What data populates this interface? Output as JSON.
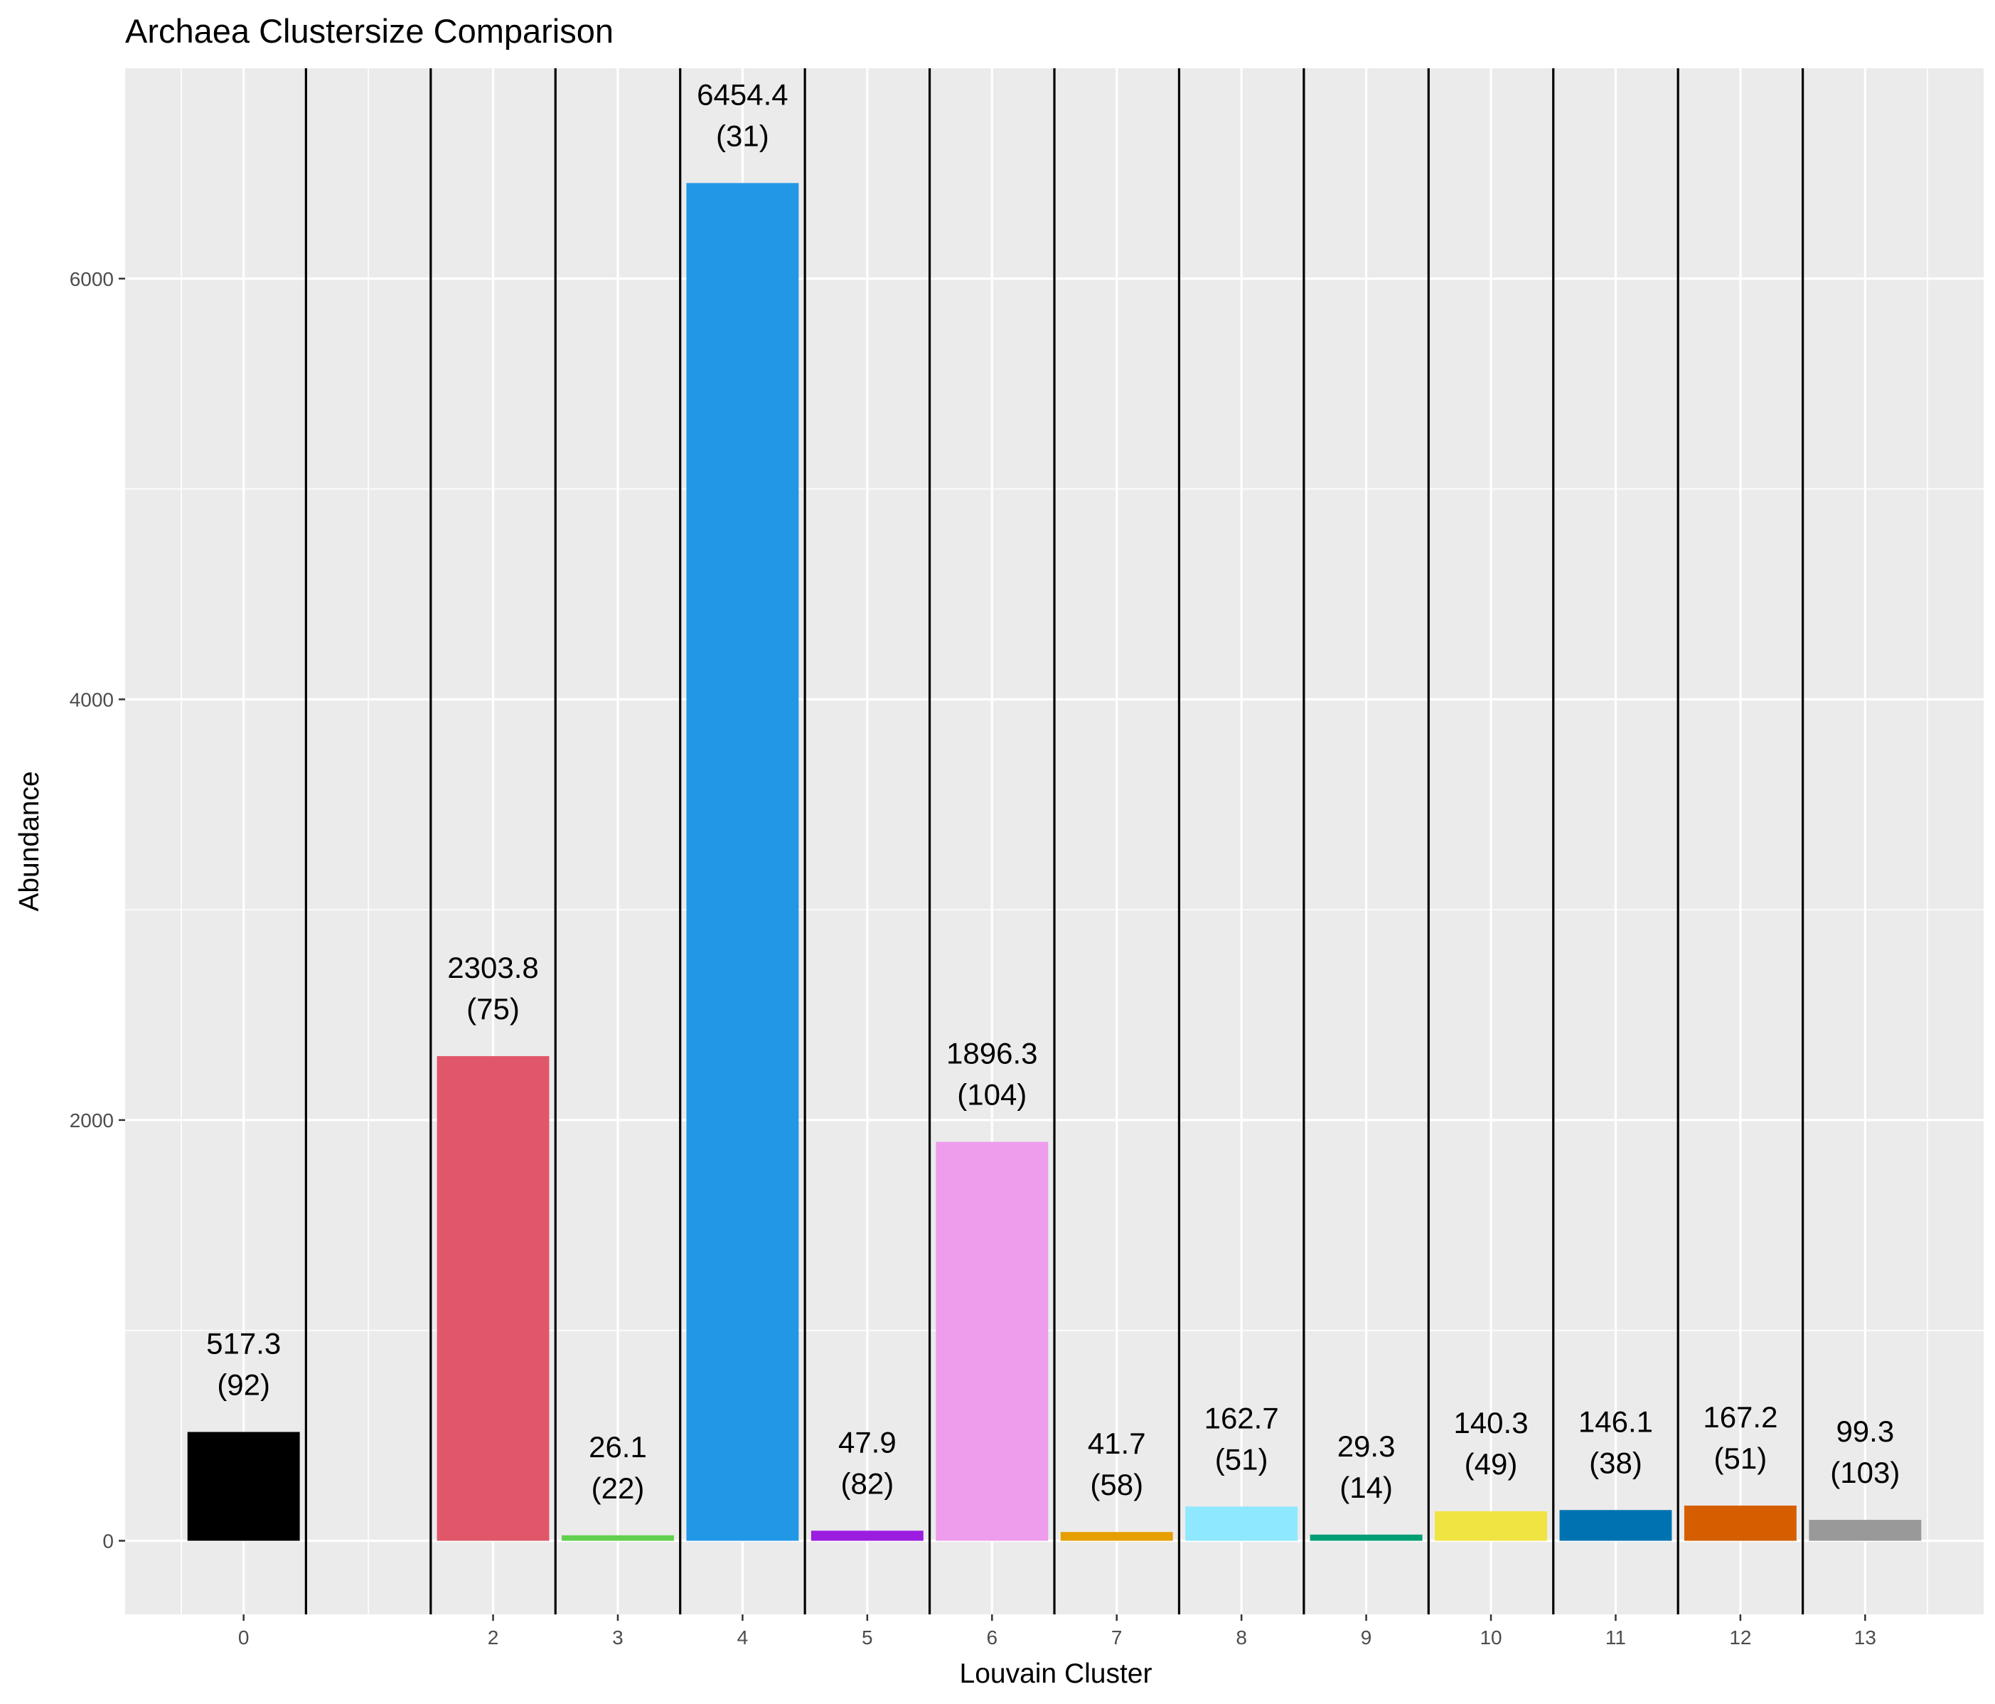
{
  "chart_data": {
    "type": "bar",
    "title": "Archaea Clustersize Comparison",
    "xlabel": "Louvain Cluster",
    "ylabel": "Abundance",
    "ylim": [
      -350,
      7000
    ],
    "xlim": [
      -0.95,
      13.95
    ],
    "y_ticks": [
      0,
      2000,
      4000,
      6000
    ],
    "y_tick_labels": [
      "0",
      "2000",
      "4000",
      "6000"
    ],
    "grid": true,
    "categories": [
      "0",
      "2",
      "3",
      "4",
      "5",
      "6",
      "7",
      "8",
      "9",
      "10",
      "11",
      "12",
      "13"
    ],
    "x_positions": [
      0,
      2,
      3,
      4,
      5,
      6,
      7,
      8,
      9,
      10,
      11,
      12,
      13
    ],
    "values": [
      517.3,
      2303.8,
      26.1,
      6454.4,
      47.9,
      1896.3,
      41.7,
      162.7,
      29.3,
      140.3,
      146.1,
      167.2,
      99.3
    ],
    "value_labels": [
      "517.3",
      "2303.8",
      "26.1",
      "6454.4",
      "47.9",
      "1896.3",
      "41.7",
      "162.7",
      "29.3",
      "140.3",
      "146.1",
      "167.2",
      "99.3"
    ],
    "count_labels": [
      "(92)",
      "(75)",
      "(22)",
      "(31)",
      "(82)",
      "(104)",
      "(58)",
      "(51)",
      "(14)",
      "(49)",
      "(38)",
      "(51)",
      "(103)"
    ],
    "colors": [
      "#000000",
      "#E05769",
      "#61D04F",
      "#2297E6",
      "#9B1EE0",
      "#EE9CEC",
      "#E69F00",
      "#8EE8FF",
      "#009E73",
      "#F0E442",
      "#0072B2",
      "#D55E00",
      "#999999"
    ],
    "separators": [
      0.5,
      1.5,
      2.5,
      3.5,
      4.5,
      5.5,
      6.5,
      7.5,
      8.5,
      9.5,
      10.5,
      11.5,
      12.5
    ]
  }
}
